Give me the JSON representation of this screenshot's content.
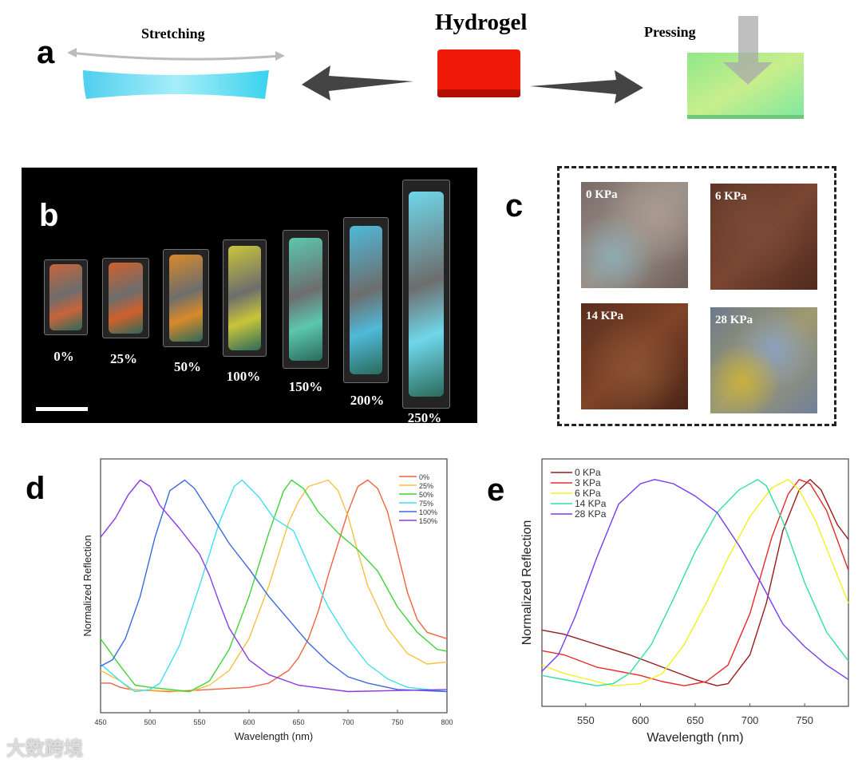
{
  "panel_labels": {
    "a": "a",
    "b": "b",
    "c": "c",
    "d": "d",
    "e": "e"
  },
  "panel_a": {
    "title": "Hydrogel",
    "left_caption": "Stretching",
    "right_caption": "Pressing",
    "colors": {
      "hydrogel": "#f01a0a",
      "stretched": "#4fd6f0",
      "pressed": "#9be98a"
    }
  },
  "panel_b": {
    "strains": [
      "0%",
      "25%",
      "50%",
      "100%",
      "150%",
      "200%",
      "250%"
    ],
    "colors": [
      "#c8643a",
      "#d0602c",
      "#d88a2a",
      "#c9c53a",
      "#5cc7b0",
      "#4fb9d8",
      "#6fd7ea"
    ]
  },
  "panel_c": {
    "pressures": [
      "0 KPa",
      "6 KPa",
      "14 KPa",
      "28 KPa"
    ]
  },
  "watermark": "大数跨境",
  "chart_data": [
    {
      "type": "line",
      "title": "",
      "xlabel": "Wavelength (nm)",
      "ylabel": "Normalized Reflection",
      "xlim": [
        450,
        800
      ],
      "ylim": [
        -0.1,
        1.1
      ],
      "xticks": [
        450,
        500,
        550,
        600,
        650,
        700,
        750,
        800
      ],
      "legend": "top-right",
      "grid": false,
      "series": [
        {
          "name": "0%",
          "color": "#f0643c",
          "points": [
            [
              450,
              0.04
            ],
            [
              460,
              0.04
            ],
            [
              470,
              0.02
            ],
            [
              480,
              0.01
            ],
            [
              520,
              0
            ],
            [
              560,
              0.01
            ],
            [
              600,
              0.02
            ],
            [
              620,
              0.04
            ],
            [
              640,
              0.1
            ],
            [
              650,
              0.16
            ],
            [
              660,
              0.25
            ],
            [
              670,
              0.38
            ],
            [
              680,
              0.55
            ],
            [
              690,
              0.7
            ],
            [
              700,
              0.85
            ],
            [
              710,
              0.97
            ],
            [
              720,
              1
            ],
            [
              730,
              0.96
            ],
            [
              740,
              0.85
            ],
            [
              750,
              0.66
            ],
            [
              760,
              0.47
            ],
            [
              770,
              0.34
            ],
            [
              780,
              0.28
            ],
            [
              800,
              0.25
            ]
          ]
        },
        {
          "name": "25%",
          "color": "#f7c040",
          "points": [
            [
              450,
              0.1
            ],
            [
              470,
              0.05
            ],
            [
              480,
              0.01
            ],
            [
              540,
              0
            ],
            [
              560,
              0.03
            ],
            [
              580,
              0.1
            ],
            [
              600,
              0.25
            ],
            [
              620,
              0.5
            ],
            [
              640,
              0.8
            ],
            [
              650,
              0.9
            ],
            [
              660,
              0.97
            ],
            [
              680,
              1
            ],
            [
              690,
              0.95
            ],
            [
              700,
              0.83
            ],
            [
              710,
              0.66
            ],
            [
              720,
              0.5
            ],
            [
              740,
              0.3
            ],
            [
              760,
              0.18
            ],
            [
              780,
              0.13
            ],
            [
              800,
              0.14
            ]
          ]
        },
        {
          "name": "50%",
          "color": "#3ed43a",
          "points": [
            [
              450,
              0.25
            ],
            [
              470,
              0.12
            ],
            [
              485,
              0.03
            ],
            [
              500,
              0.02
            ],
            [
              540,
              0
            ],
            [
              560,
              0.05
            ],
            [
              580,
              0.2
            ],
            [
              600,
              0.45
            ],
            [
              620,
              0.75
            ],
            [
              635,
              0.95
            ],
            [
              643,
              1
            ],
            [
              655,
              0.96
            ],
            [
              670,
              0.85
            ],
            [
              690,
              0.75
            ],
            [
              710,
              0.67
            ],
            [
              730,
              0.57
            ],
            [
              750,
              0.4
            ],
            [
              770,
              0.28
            ],
            [
              790,
              0.2
            ],
            [
              800,
              0.19
            ]
          ]
        },
        {
          "name": "75%",
          "color": "#3ee0f0",
          "points": [
            [
              450,
              0.13
            ],
            [
              470,
              0.05
            ],
            [
              485,
              0
            ],
            [
              500,
              0.01
            ],
            [
              510,
              0.04
            ],
            [
              530,
              0.22
            ],
            [
              550,
              0.5
            ],
            [
              570,
              0.8
            ],
            [
              585,
              0.97
            ],
            [
              593,
              1
            ],
            [
              610,
              0.92
            ],
            [
              625,
              0.82
            ],
            [
              645,
              0.76
            ],
            [
              660,
              0.6
            ],
            [
              680,
              0.4
            ],
            [
              700,
              0.25
            ],
            [
              720,
              0.13
            ],
            [
              740,
              0.06
            ],
            [
              760,
              0.02
            ],
            [
              800,
              0
            ]
          ]
        },
        {
          "name": "100%",
          "color": "#3a6ae0",
          "points": [
            [
              450,
              0.12
            ],
            [
              462,
              0.15
            ],
            [
              475,
              0.25
            ],
            [
              490,
              0.45
            ],
            [
              505,
              0.73
            ],
            [
              520,
              0.95
            ],
            [
              535,
              1
            ],
            [
              545,
              0.96
            ],
            [
              560,
              0.85
            ],
            [
              580,
              0.7
            ],
            [
              600,
              0.58
            ],
            [
              620,
              0.45
            ],
            [
              640,
              0.34
            ],
            [
              660,
              0.23
            ],
            [
              680,
              0.14
            ],
            [
              700,
              0.07
            ],
            [
              720,
              0.04
            ],
            [
              750,
              0.01
            ],
            [
              800,
              0
            ]
          ]
        },
        {
          "name": "150%",
          "color": "#8a3ae8",
          "points": [
            [
              450,
              0.73
            ],
            [
              465,
              0.82
            ],
            [
              478,
              0.93
            ],
            [
              490,
              1
            ],
            [
              500,
              0.97
            ],
            [
              510,
              0.88
            ],
            [
              530,
              0.77
            ],
            [
              550,
              0.65
            ],
            [
              560,
              0.55
            ],
            [
              570,
              0.42
            ],
            [
              580,
              0.3
            ],
            [
              600,
              0.15
            ],
            [
              620,
              0.08
            ],
            [
              650,
              0.03
            ],
            [
              700,
              0
            ],
            [
              800,
              0.01
            ]
          ]
        }
      ]
    },
    {
      "type": "line",
      "title": "",
      "xlabel": "Wavelength (nm)",
      "ylabel": "Normalized Reflection",
      "xlim": [
        510,
        790
      ],
      "ylim": [
        -0.1,
        1.1
      ],
      "xticks": [
        550,
        600,
        650,
        700,
        750
      ],
      "legend": "top-left",
      "grid": false,
      "series": [
        {
          "name": "0 KPa",
          "color": "#9a1a1a",
          "points": [
            [
              510,
              0.27
            ],
            [
              530,
              0.25
            ],
            [
              560,
              0.2
            ],
            [
              590,
              0.15
            ],
            [
              620,
              0.09
            ],
            [
              650,
              0.03
            ],
            [
              670,
              0
            ],
            [
              680,
              0.01
            ],
            [
              700,
              0.15
            ],
            [
              715,
              0.4
            ],
            [
              730,
              0.75
            ],
            [
              745,
              0.95
            ],
            [
              755,
              1
            ],
            [
              765,
              0.95
            ],
            [
              780,
              0.78
            ],
            [
              790,
              0.71
            ]
          ]
        },
        {
          "name": "3 KPa",
          "color": "#e82a2a",
          "points": [
            [
              510,
              0.17
            ],
            [
              530,
              0.15
            ],
            [
              560,
              0.09
            ],
            [
              600,
              0.05
            ],
            [
              620,
              0.02
            ],
            [
              640,
              0
            ],
            [
              660,
              0.02
            ],
            [
              680,
              0.1
            ],
            [
              700,
              0.35
            ],
            [
              720,
              0.72
            ],
            [
              735,
              0.93
            ],
            [
              745,
              1
            ],
            [
              755,
              0.98
            ],
            [
              770,
              0.85
            ],
            [
              790,
              0.56
            ]
          ]
        },
        {
          "name": "6 KPa",
          "color": "#f4f020",
          "points": [
            [
              510,
              0.1
            ],
            [
              530,
              0.06
            ],
            [
              560,
              0.02
            ],
            [
              575,
              0
            ],
            [
              600,
              0.01
            ],
            [
              620,
              0.06
            ],
            [
              640,
              0.2
            ],
            [
              660,
              0.4
            ],
            [
              680,
              0.62
            ],
            [
              700,
              0.82
            ],
            [
              720,
              0.96
            ],
            [
              735,
              1
            ],
            [
              745,
              0.95
            ],
            [
              760,
              0.8
            ],
            [
              775,
              0.6
            ],
            [
              790,
              0.4
            ]
          ]
        },
        {
          "name": "14 KPa",
          "color": "#2ee0a0",
          "points": [
            [
              510,
              0.05
            ],
            [
              540,
              0.02
            ],
            [
              560,
              0
            ],
            [
              575,
              0.01
            ],
            [
              590,
              0.06
            ],
            [
              610,
              0.2
            ],
            [
              630,
              0.42
            ],
            [
              650,
              0.65
            ],
            [
              670,
              0.84
            ],
            [
              690,
              0.95
            ],
            [
              707,
              1
            ],
            [
              715,
              0.97
            ],
            [
              730,
              0.8
            ],
            [
              750,
              0.5
            ],
            [
              770,
              0.26
            ],
            [
              790,
              0.12
            ]
          ]
        },
        {
          "name": "28 KPa",
          "color": "#7a3aee",
          "points": [
            [
              510,
              0.07
            ],
            [
              525,
              0.15
            ],
            [
              540,
              0.33
            ],
            [
              560,
              0.62
            ],
            [
              580,
              0.88
            ],
            [
              600,
              0.98
            ],
            [
              613,
              1
            ],
            [
              630,
              0.98
            ],
            [
              650,
              0.92
            ],
            [
              670,
              0.84
            ],
            [
              690,
              0.68
            ],
            [
              710,
              0.5
            ],
            [
              730,
              0.3
            ],
            [
              750,
              0.19
            ],
            [
              770,
              0.1
            ],
            [
              790,
              0.03
            ]
          ]
        }
      ]
    }
  ]
}
